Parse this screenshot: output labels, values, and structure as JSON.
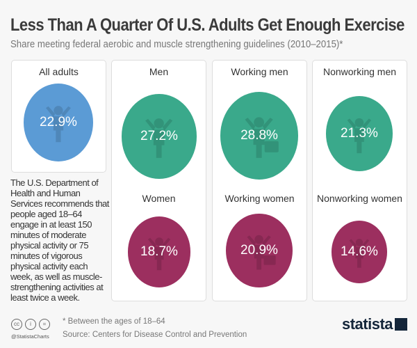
{
  "header": {
    "title": "Less Than A Quarter Of U.S. Adults Get Enough Exercise",
    "subtitle": "Share meeting federal aerobic and muscle strengthening guidelines (2010–2015)*"
  },
  "chart_data": {
    "type": "proportional-circles",
    "title": "Less Than A Quarter Of U.S. Adults Get Enough Exercise",
    "subtitle": "Share meeting federal aerobic and muscle strengthening guidelines (2010–2015)*",
    "unit": "%",
    "items": [
      {
        "label": "All adults",
        "value": 22.9,
        "display": "22.9%",
        "color": "#5b9bd5",
        "icon": "adults-icon"
      },
      {
        "label": "Men",
        "value": 27.2,
        "display": "27.2%",
        "color": "#3aa98b",
        "icon": "man-icon"
      },
      {
        "label": "Working men",
        "value": 28.8,
        "display": "28.8%",
        "color": "#3aa98b",
        "icon": "working-man-icon"
      },
      {
        "label": "Nonworking men",
        "value": 21.3,
        "display": "21.3%",
        "color": "#3aa98b",
        "icon": "man-icon"
      },
      {
        "label": "Women",
        "value": 18.7,
        "display": "18.7%",
        "color": "#9c2f5f",
        "icon": "woman-icon"
      },
      {
        "label": "Working women",
        "value": 20.9,
        "display": "20.9%",
        "color": "#9c2f5f",
        "icon": "working-woman-icon"
      },
      {
        "label": "Nonworking women",
        "value": 14.6,
        "display": "14.6%",
        "color": "#9c2f5f",
        "icon": "woman-icon"
      }
    ]
  },
  "description": "The U.S. Department of Health and Human Services recommends that people aged 18–64 engage in at least 150 minutes of moderate physical activity or 75 minutes of vigorous physical activity each week, as well as muscle-strengthening activities at least twice a week.",
  "footer": {
    "note": "* Between the ages of 18–64",
    "source": "Source: Centers for Disease Control and Prevention",
    "handle": "@StatistaCharts",
    "brand": "statista",
    "license_icons": [
      "cc",
      "by",
      "nd"
    ]
  }
}
